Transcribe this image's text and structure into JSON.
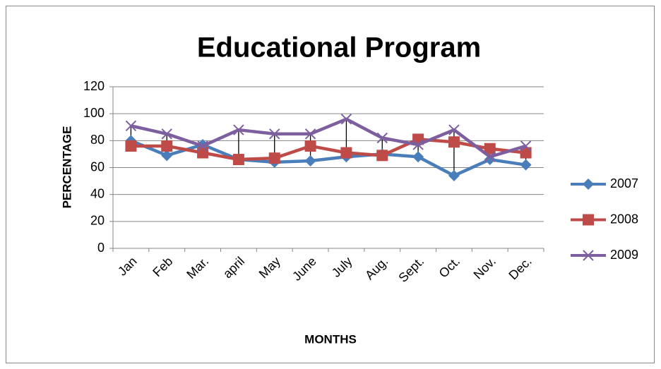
{
  "chart_data": {
    "type": "line",
    "title": "Educational Program",
    "x_label": "MONTHS",
    "y_label": "PERCENTAGE",
    "categories": [
      "Jan",
      "Feb",
      "Mar.",
      "april",
      "May",
      "June",
      "July",
      "Aug.",
      "Sept.",
      "Oct.",
      "Nov.",
      "Dec."
    ],
    "series": [
      {
        "name": "2007",
        "color": "#4a7ebb",
        "marker": "diamond",
        "values": [
          80,
          69,
          77,
          66,
          64,
          65,
          68,
          70,
          68,
          54,
          66,
          62
        ]
      },
      {
        "name": "2008",
        "color": "#be4b48",
        "marker": "square",
        "values": [
          76,
          76,
          71,
          66,
          67,
          76,
          71,
          69,
          81,
          79,
          74,
          71
        ]
      },
      {
        "name": "2009",
        "color": "#7d5fa0",
        "marker": "x",
        "values": [
          91,
          85,
          76,
          88,
          85,
          85,
          96,
          82,
          77,
          88,
          68,
          76
        ]
      }
    ],
    "ylim": [
      0,
      120
    ],
    "yticks": [
      0,
      20,
      40,
      60,
      80,
      100,
      120
    ],
    "grid": true,
    "high_low_lines": true,
    "legend": "right"
  }
}
